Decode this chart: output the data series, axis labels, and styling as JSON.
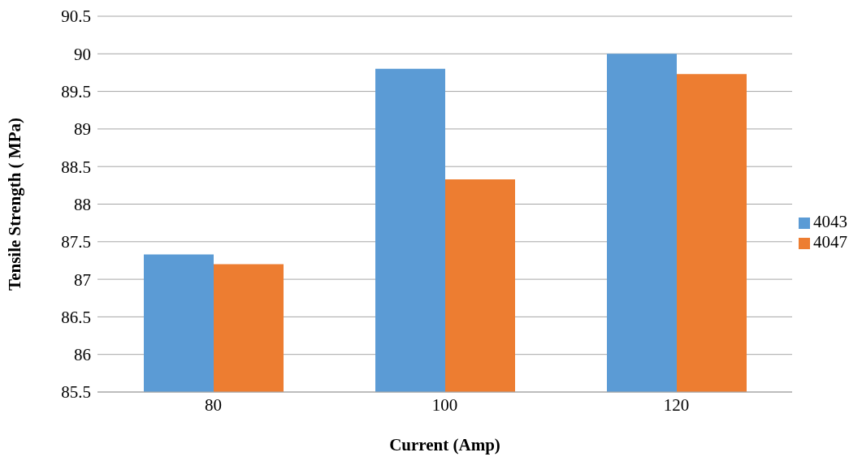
{
  "chart_data": {
    "type": "bar",
    "xlabel": "Current (Amp)",
    "ylabel": "Tensile Strength ( MPa)",
    "categories": [
      "80",
      "100",
      "120"
    ],
    "series": [
      {
        "name": "4043",
        "color": "#5b9bd5",
        "values": [
          87.33,
          89.8,
          90.0
        ]
      },
      {
        "name": "4047",
        "color": "#ed7d31",
        "values": [
          87.2,
          88.33,
          89.73
        ]
      }
    ],
    "ylim": [
      85.5,
      90.5
    ],
    "yticks": [
      85.5,
      86,
      86.5,
      87,
      87.5,
      88,
      88.5,
      89,
      89.5,
      90,
      90.5
    ],
    "grid": "y",
    "legend": "right"
  }
}
